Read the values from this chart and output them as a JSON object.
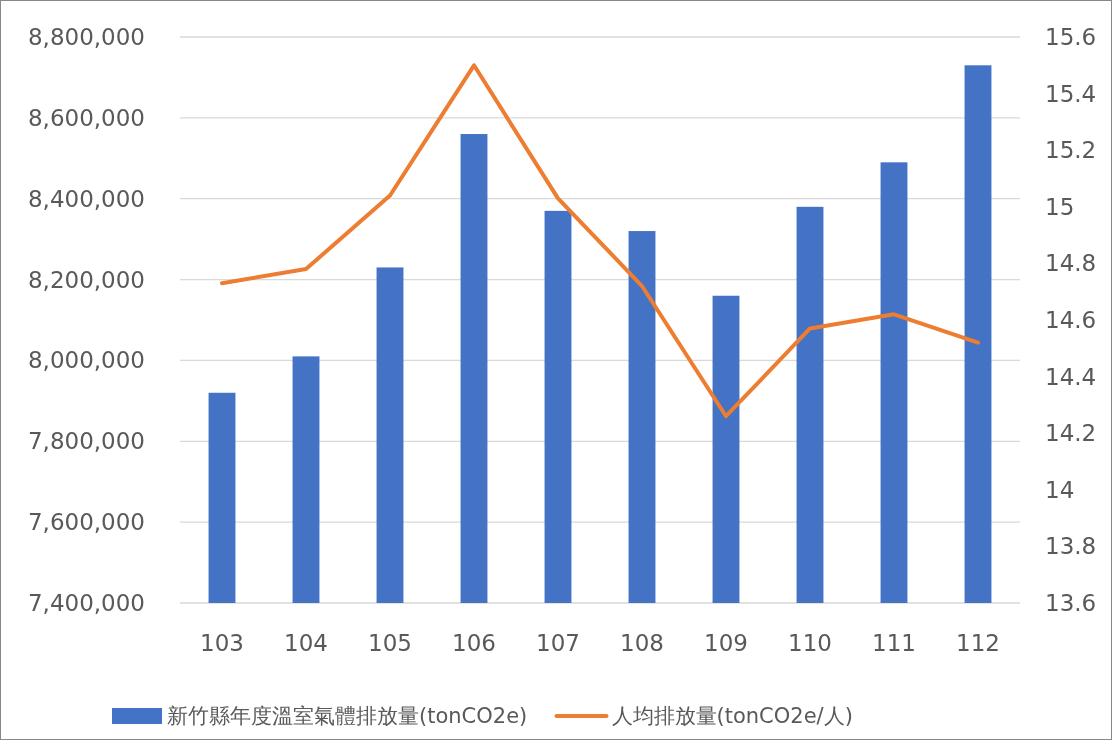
{
  "chart_data": {
    "type": "bar",
    "categories": [
      "103",
      "104",
      "105",
      "106",
      "107",
      "108",
      "109",
      "110",
      "111",
      "112"
    ],
    "series": [
      {
        "name": "新竹縣年度溫室氣體排放量(tonCO2e)",
        "color": "#4472c4",
        "values": [
          7920000,
          8010000,
          8230000,
          8560000,
          8370000,
          8320000,
          8160000,
          8380000,
          8490000,
          8730000
        ]
      },
      {
        "name": "人均排放量(tonCO2e/人)",
        "type": "line",
        "axis": "y2",
        "color": "#ed7d31",
        "values": [
          14.73,
          14.78,
          15.04,
          15.5,
          15.03,
          14.72,
          14.26,
          14.57,
          14.62,
          14.52
        ]
      }
    ],
    "ylim": [
      7400000,
      8800000
    ],
    "yticks": [
      {
        "value": 7400000,
        "label": "7,400,000"
      },
      {
        "value": 7600000,
        "label": "7,600,000"
      },
      {
        "value": 7800000,
        "label": "7,800,000"
      },
      {
        "value": 8000000,
        "label": "8,000,000"
      },
      {
        "value": 8200000,
        "label": "8,200,000"
      },
      {
        "value": 8400000,
        "label": "8,400,000"
      },
      {
        "value": 8600000,
        "label": "8,600,000"
      },
      {
        "value": 8800000,
        "label": "8,800,000"
      }
    ],
    "y2lim": [
      13.6,
      15.6
    ],
    "y2ticks": [
      13.6,
      13.8,
      14,
      14.2,
      14.4,
      14.6,
      14.8,
      15,
      15.2,
      15.4,
      15.6
    ],
    "grid": "y",
    "legend": "bottom",
    "marker": "none",
    "line_style": "solid"
  }
}
